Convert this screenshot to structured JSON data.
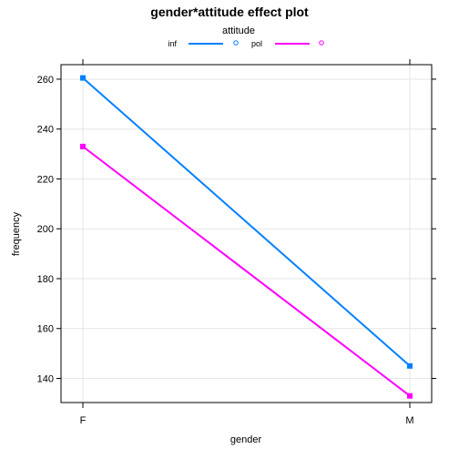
{
  "chart_data": {
    "type": "line",
    "title": "gender*attitude effect plot",
    "xlabel": "gender",
    "ylabel": "frequency",
    "categories": [
      "F",
      "M"
    ],
    "ylim": [
      130,
      265
    ],
    "yticks": [
      140,
      160,
      180,
      200,
      220,
      240,
      260
    ],
    "grid": true,
    "legend": {
      "title": "attitude",
      "placement": "top"
    },
    "series": [
      {
        "name": "inf",
        "values": [
          260.5,
          145
        ],
        "color": "#0080ff",
        "marker": "square"
      },
      {
        "name": "pol",
        "values": [
          233,
          133
        ],
        "color": "#ff00ff",
        "marker": "square"
      }
    ]
  }
}
